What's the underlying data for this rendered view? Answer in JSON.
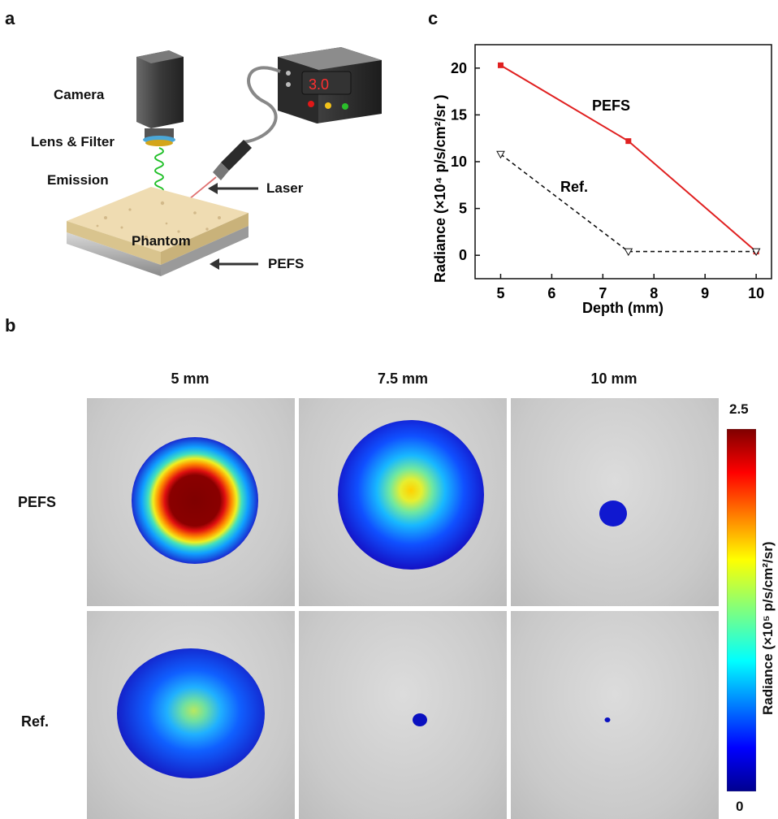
{
  "panel_a": {
    "letter": "a",
    "labels": {
      "camera": "Camera",
      "lens_filter": "Lens & Filter",
      "emission": "Emission",
      "laser": "Laser",
      "phantom": "Phantom",
      "pefs": "PEFS",
      "display": "3.0"
    }
  },
  "panel_b": {
    "letter": "b",
    "columns": [
      "5 mm",
      "7.5 mm",
      "10 mm"
    ],
    "rows": [
      "PEFS",
      "Ref."
    ],
    "colorbar": {
      "max_label": "2.5",
      "min_label": "0",
      "title": "Radiance (×10⁵ p/s/cm²/sr)"
    }
  },
  "panel_c": {
    "letter": "c",
    "annotations": {
      "pefs": "PEFS",
      "ref": "Ref."
    }
  },
  "chart_data": {
    "type": "line",
    "title": "",
    "xlabel": "Depth (mm)",
    "ylabel": "Radiance (×10⁴ p/s/cm²/sr )",
    "xlim": [
      4.5,
      10.3
    ],
    "ylim": [
      -2.5,
      22.5
    ],
    "xticks": [
      5,
      6,
      7,
      8,
      9,
      10
    ],
    "yticks": [
      0,
      5,
      10,
      15,
      20
    ],
    "grid": false,
    "series": [
      {
        "name": "PEFS",
        "x": [
          5,
          7.5,
          10
        ],
        "y": [
          20.3,
          12.2,
          0.4
        ],
        "color": "#e02020",
        "marker": "square",
        "dash": false
      },
      {
        "name": "Ref.",
        "x": [
          5,
          7.5,
          10
        ],
        "y": [
          10.8,
          0.4,
          0.4
        ],
        "color": "#111111",
        "marker": "triangle-down",
        "dash": true
      }
    ]
  }
}
